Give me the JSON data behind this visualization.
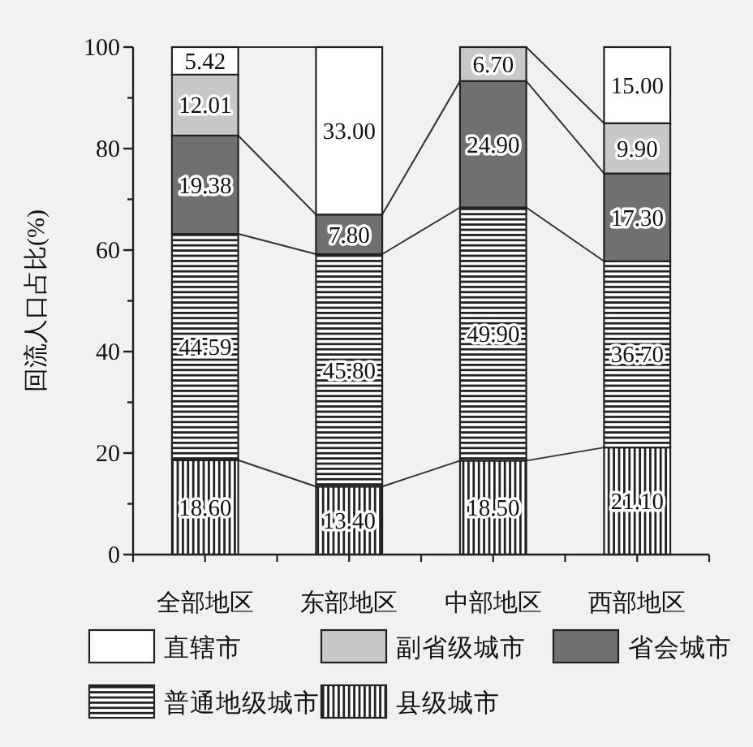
{
  "chart_data": {
    "type": "bar",
    "stacked": true,
    "ylabel": "回流人口占比(%)",
    "categories": [
      "全部地区",
      "东部地区",
      "中部地区",
      "西部地区"
    ],
    "series": [
      {
        "name": "县级城市",
        "color": "#222222",
        "values": [
          18.6,
          13.4,
          18.5,
          21.1
        ],
        "value_labels": [
          "18.60",
          "13.40",
          "18.50",
          "21.10"
        ]
      },
      {
        "name": "普通地级城市",
        "color": "#222222",
        "values": [
          44.59,
          45.8,
          49.9,
          36.7
        ],
        "value_labels": [
          "44.59",
          "45.80",
          "49.90",
          "36.70"
        ]
      },
      {
        "name": "省会城市",
        "color": "#707070",
        "values": [
          19.38,
          7.8,
          24.9,
          17.3
        ],
        "value_labels": [
          "19.38",
          "7.80",
          "24.90",
          "17.30"
        ]
      },
      {
        "name": "副省级城市",
        "color": "#c8c8c8",
        "values": [
          12.01,
          null,
          6.7,
          9.9
        ],
        "value_labels": [
          "12.01",
          null,
          "6.70",
          "9.90"
        ]
      },
      {
        "name": "直辖市",
        "color": "#ffffff",
        "values": [
          5.42,
          33.0,
          null,
          15.0
        ],
        "value_labels": [
          "5.42",
          "33.00",
          null,
          "15.00"
        ]
      }
    ],
    "ylim": [
      0,
      100
    ],
    "yticks": [
      0,
      {
        "value": 10,
        "label": null
      },
      20,
      {
        "value": 30,
        "label": null
      },
      40,
      {
        "value": 50,
        "label": null
      },
      60,
      {
        "value": 70,
        "label": null
      },
      80,
      {
        "value": 90,
        "label": null
      },
      100
    ],
    "legend": "bottom"
  }
}
